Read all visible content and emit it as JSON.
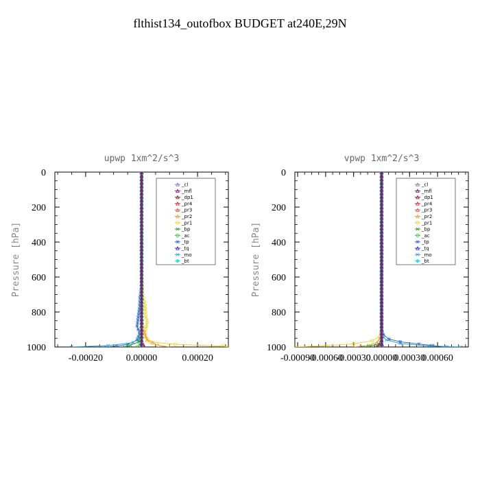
{
  "page_title": "flthist134_outofbox  BUDGET at240E,29N",
  "colors": {
    "_cl": "#8f79a8",
    "_mfl": "#7a1a6a",
    "_dp1": "#9a1a3a",
    "_pr4": "#c03030",
    "_pr3": "#e84848",
    "_pr2": "#f5a040",
    "_pr1": "#f0d020",
    "_bp": "#2a9a2a",
    "_ac": "#40c840",
    "_tp": "#3a70c8",
    "_tq": "#3030b0",
    "_mo": "#30a0d0",
    "_bt": "#30e0e0"
  },
  "chart_data": [
    {
      "type": "line",
      "title": "upwp   1xm^2/s^3",
      "ylabel": "Pressure [hPa]",
      "xlabel": "",
      "xlim": [
        -0.00031,
        0.00031
      ],
      "ylim": [
        1000,
        0
      ],
      "xticks": [
        -0.0002,
        0.0,
        0.0002
      ],
      "xtick_labels": [
        "-0.00020",
        "0.00000",
        "0.00020"
      ],
      "yticks": [
        0,
        200,
        400,
        600,
        800,
        1000
      ],
      "ytick_labels": [
        "0",
        "200",
        "400",
        "600",
        "800",
        "1000"
      ],
      "legend": [
        "_cl",
        "_mfl",
        "_dp1",
        "_pr4",
        "_pr3",
        "_pr2",
        "_pr1",
        "_bp",
        "_ac",
        "_tp",
        "_tq",
        "_mo",
        "_bt"
      ],
      "legend_position": "top-right",
      "series": [
        {
          "name": "_pr1",
          "points": [
            [
              0,
              0
            ],
            [
              0,
              600
            ],
            [
              4e-06,
              700
            ],
            [
              1.2e-05,
              760
            ],
            [
              1.4e-05,
              820
            ],
            [
              2e-05,
              860
            ],
            [
              1.4e-05,
              900
            ],
            [
              1.2e-05,
              940
            ],
            [
              3e-05,
              970
            ],
            [
              0.00012,
              985
            ],
            [
              0.00029,
              995
            ],
            [
              0.00031,
              1000
            ]
          ]
        },
        {
          "name": "_pr2",
          "points": [
            [
              0,
              0
            ],
            [
              0,
              800
            ],
            [
              5e-06,
              900
            ],
            [
              2e-05,
              960
            ],
            [
              6e-05,
              990
            ],
            [
              0.0001,
              1000
            ]
          ]
        },
        {
          "name": "_tp",
          "points": [
            [
              0,
              0
            ],
            [
              0,
              650
            ],
            [
              -6e-06,
              720
            ],
            [
              -8e-06,
              780
            ],
            [
              -1.2e-05,
              830
            ],
            [
              -1.6e-05,
              880
            ],
            [
              -8e-06,
              920
            ],
            [
              -1.5e-05,
              960
            ],
            [
              -5e-05,
              985
            ],
            [
              -9e-05,
              995
            ],
            [
              -0.00013,
              1000
            ]
          ]
        },
        {
          "name": "_mo",
          "points": [
            [
              0,
              0
            ],
            [
              0,
              930
            ],
            [
              -3e-05,
              975
            ],
            [
              -0.00012,
              992
            ],
            [
              -0.00025,
              1000
            ]
          ]
        },
        {
          "name": "_bp",
          "points": [
            [
              0,
              0
            ],
            [
              0,
              900
            ],
            [
              -3e-06,
              940
            ],
            [
              -1e-05,
              970
            ],
            [
              -4e-05,
              990
            ],
            [
              -6e-05,
              1000
            ]
          ]
        },
        {
          "name": "_ac",
          "points": [
            [
              0,
              0
            ],
            [
              0,
              950
            ],
            [
              -5e-06,
              980
            ],
            [
              -1.5e-05,
              1000
            ]
          ]
        },
        {
          "name": "_dp1",
          "points": [
            [
              0,
              0
            ],
            [
              0,
              960
            ],
            [
              6e-06,
              985
            ],
            [
              1e-05,
              1000
            ]
          ]
        },
        {
          "name": "_tq",
          "points": [
            [
              0,
              0
            ],
            [
              0,
              960
            ],
            [
              -2e-06,
              980
            ],
            [
              -4e-06,
              1000
            ]
          ]
        },
        {
          "name": "_pr4",
          "points": [
            [
              0,
              0
            ],
            [
              0,
              980
            ],
            [
              2e-06,
              1000
            ]
          ]
        },
        {
          "name": "_pr3",
          "points": [
            [
              0,
              0
            ],
            [
              0,
              980
            ],
            [
              3e-06,
              1000
            ]
          ]
        },
        {
          "name": "_cl",
          "points": [
            [
              0,
              0
            ],
            [
              0,
              1000
            ]
          ]
        },
        {
          "name": "_bt",
          "points": [
            [
              0,
              0
            ],
            [
              0,
              1000
            ]
          ]
        },
        {
          "name": "_mfl",
          "points": [
            [
              0,
              0
            ],
            [
              0,
              1000
            ]
          ]
        }
      ]
    },
    {
      "type": "line",
      "title": "vpwp   1xm^2/s^3",
      "ylabel": "Pressure [hPa]",
      "xlabel": "",
      "xlim": [
        -0.00093,
        0.00093
      ],
      "ylim": [
        1000,
        0
      ],
      "xticks": [
        -0.0009,
        -0.0006,
        -0.0003,
        0.0,
        0.0003,
        0.0006
      ],
      "xtick_labels": [
        "-0.00090",
        "-0.00060",
        "-0.00030",
        "0.00000",
        "0.00030",
        "0.00060"
      ],
      "yticks": [
        0,
        200,
        400,
        600,
        800,
        1000
      ],
      "ytick_labels": [
        "0",
        "200",
        "400",
        "600",
        "800",
        "1000"
      ],
      "legend": [
        "_cl",
        "_mfl",
        "_dp1",
        "_pr4",
        "_pr3",
        "_pr2",
        "_pr1",
        "_bp",
        "_ac",
        "_tp",
        "_tq",
        "_mo",
        "_bt"
      ],
      "legend_position": "top-right",
      "series": [
        {
          "name": "_pr1",
          "points": [
            [
              0,
              0
            ],
            [
              0,
              900
            ],
            [
              -2e-05,
              940
            ],
            [
              -0.0001,
              965
            ],
            [
              -0.0003,
              982
            ],
            [
              -0.0006,
              993
            ],
            [
              -0.00093,
              1000
            ]
          ]
        },
        {
          "name": "_pr2",
          "points": [
            [
              0,
              0
            ],
            [
              0,
              940
            ],
            [
              -5e-05,
              975
            ],
            [
              -0.00015,
              992
            ],
            [
              -0.0003,
              1000
            ]
          ]
        },
        {
          "name": "_bp",
          "points": [
            [
              0,
              0
            ],
            [
              0,
              960
            ],
            [
              -3e-05,
              982
            ],
            [
              -0.00012,
              995
            ],
            [
              -0.0002,
              1000
            ]
          ]
        },
        {
          "name": "_ac",
          "points": [
            [
              0,
              0
            ],
            [
              0,
              970
            ],
            [
              -2e-05,
              990
            ],
            [
              -5e-05,
              1000
            ]
          ]
        },
        {
          "name": "_tp",
          "points": [
            [
              0,
              0
            ],
            [
              0,
              900
            ],
            [
              2e-05,
              930
            ],
            [
              8e-05,
              955
            ],
            [
              0.0002,
              970
            ],
            [
              0.0004,
              983
            ],
            [
              0.00055,
              992
            ],
            [
              0.0007,
              1000
            ]
          ]
        },
        {
          "name": "_mo",
          "points": [
            [
              0,
              0
            ],
            [
              0,
              930
            ],
            [
              5e-05,
              960
            ],
            [
              0.0002,
              980
            ],
            [
              0.0005,
              994
            ],
            [
              0.00085,
              1000
            ]
          ]
        },
        {
          "name": "_dp1",
          "points": [
            [
              0,
              0
            ],
            [
              0,
              960
            ],
            [
              -2e-05,
              985
            ],
            [
              -5e-05,
              1000
            ]
          ]
        },
        {
          "name": "_tq",
          "points": [
            [
              0,
              0
            ],
            [
              0,
              970
            ],
            [
              1e-05,
              1000
            ]
          ]
        },
        {
          "name": "_pr4",
          "points": [
            [
              0,
              0
            ],
            [
              0,
              980
            ],
            [
              -1e-05,
              1000
            ]
          ]
        },
        {
          "name": "_pr3",
          "points": [
            [
              0,
              0
            ],
            [
              0,
              980
            ],
            [
              5e-06,
              1000
            ]
          ]
        },
        {
          "name": "_cl",
          "points": [
            [
              0,
              0
            ],
            [
              0,
              1000
            ]
          ]
        },
        {
          "name": "_bt",
          "points": [
            [
              0,
              0
            ],
            [
              0,
              1000
            ]
          ]
        },
        {
          "name": "_mfl",
          "points": [
            [
              0,
              0
            ],
            [
              0,
              1000
            ]
          ]
        }
      ]
    }
  ]
}
